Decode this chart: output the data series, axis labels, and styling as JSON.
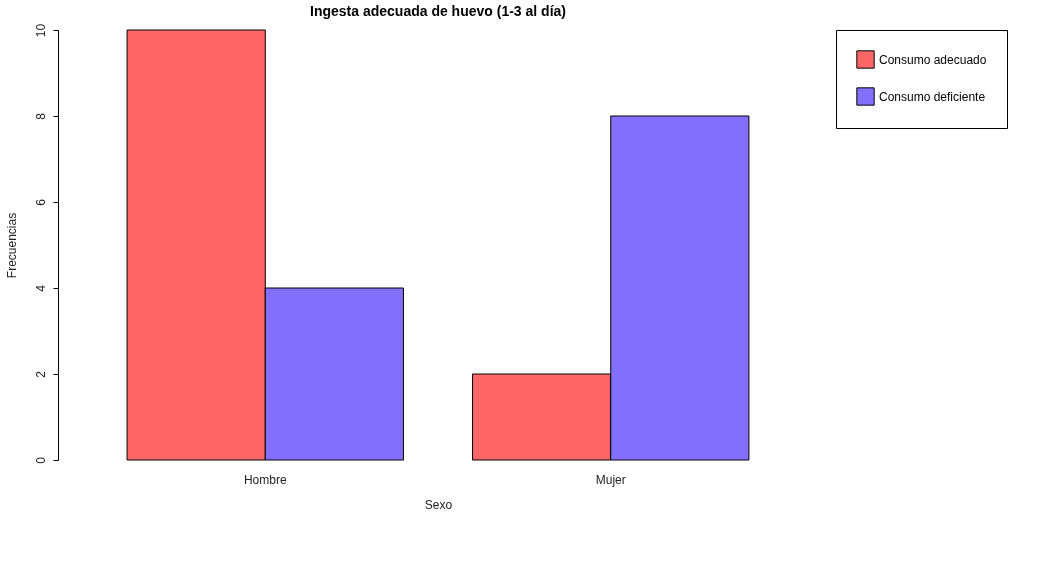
{
  "chart_data": {
    "type": "bar",
    "title": "Ingesta adecuada de huevo (1-3 al día)",
    "xlabel": "Sexo",
    "ylabel": "Frecuencias",
    "categories": [
      "Hombre",
      "Mujer"
    ],
    "series": [
      {
        "name": "Consumo adecuado",
        "color": "#ff6666",
        "values": [
          10,
          2
        ]
      },
      {
        "name": "Consumo deficiente",
        "color": "#8370ff",
        "values": [
          4,
          8
        ]
      }
    ],
    "ylim": [
      0,
      10
    ],
    "yticks": [
      0,
      2,
      4,
      6,
      8,
      10
    ],
    "grid": false,
    "legend": "top right"
  }
}
